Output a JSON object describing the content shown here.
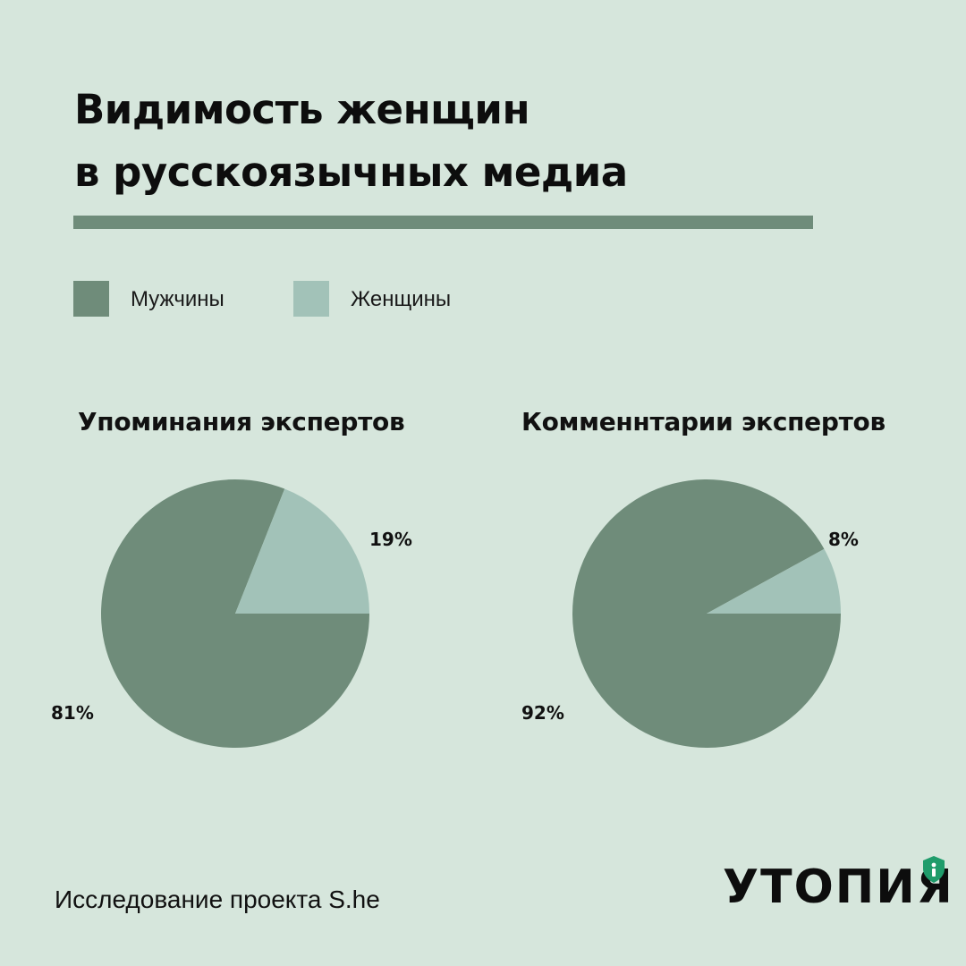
{
  "title": {
    "line1": "Видимость женщин",
    "line2": "в русскоязычных медиа"
  },
  "legend": [
    {
      "label": "Мужчины",
      "color": "#6f8c7a"
    },
    {
      "label": "Женщины",
      "color": "#a2c2b8"
    }
  ],
  "chart_data": [
    {
      "type": "pie",
      "title": "Упоминания экспертов",
      "slices": [
        {
          "label": "Мужчины",
          "value": 81,
          "display": "81%",
          "color": "#6f8c7a"
        },
        {
          "label": "Женщины",
          "value": 19,
          "display": "19%",
          "color": "#a2c2b8"
        }
      ]
    },
    {
      "type": "pie",
      "title": "Комменнтарии экспертов",
      "slices": [
        {
          "label": "Мужчины",
          "value": 92,
          "display": "92%",
          "color": "#6f8c7a"
        },
        {
          "label": "Женщины",
          "value": 8,
          "display": "8%",
          "color": "#a2c2b8"
        }
      ]
    }
  ],
  "footer": {
    "source": "Исследование проекта S.he",
    "logo": "УТОПИЯ"
  },
  "colors": {
    "background": "#d6e6dc",
    "rule": "#6f8c7a",
    "text": "#111111",
    "logo_shield": "#1f9c6b"
  },
  "icons": {
    "logo_badge": "shield-icon"
  }
}
